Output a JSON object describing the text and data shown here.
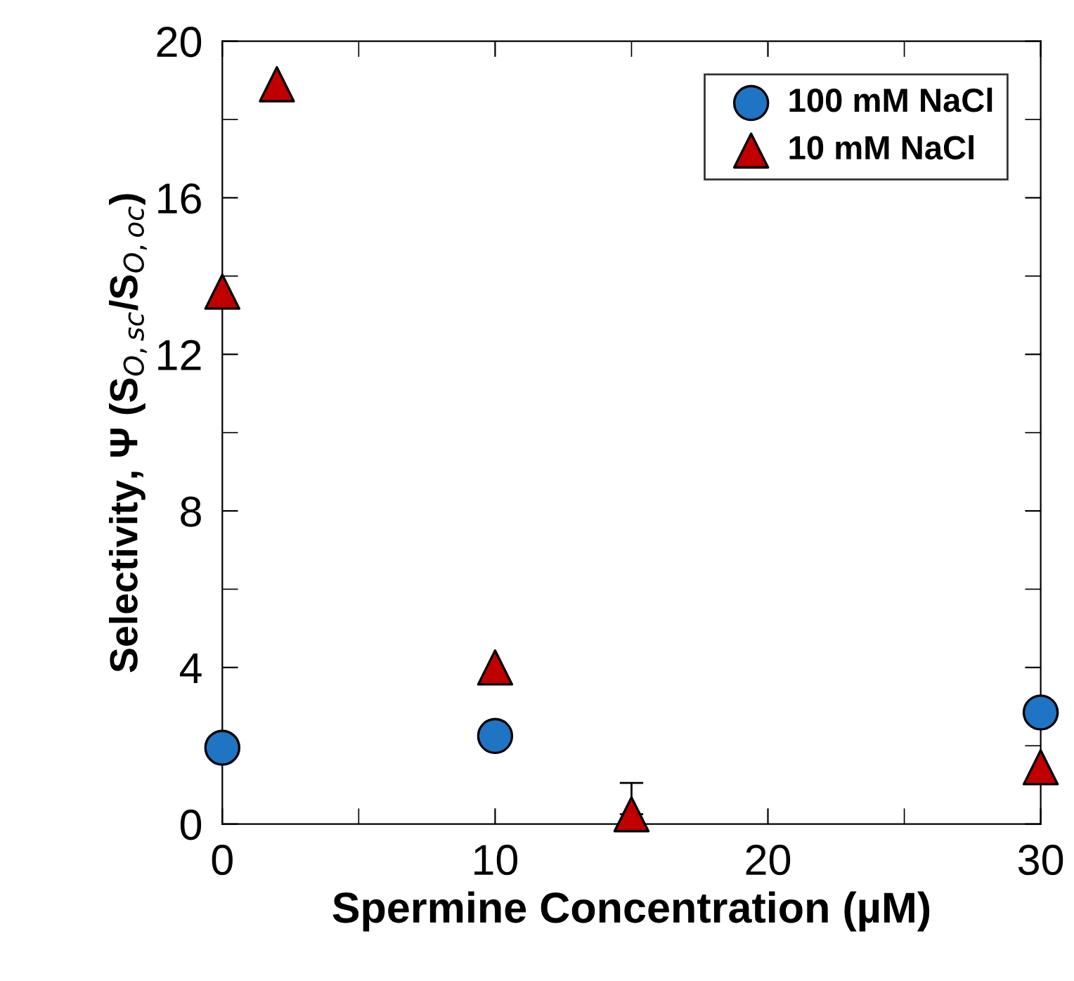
{
  "chart_data": {
    "type": "scatter",
    "xlabel": "Spermine Concentration (µM)",
    "ylabel": "Selectivity, Ψ (S$_{O,sc}$/S$_{O,oc}$)",
    "xlim": [
      0,
      30
    ],
    "xticks": [
      0,
      10,
      20,
      30
    ],
    "ylim": [
      0,
      20
    ],
    "yticks": [
      0,
      4,
      8,
      12,
      16,
      20
    ],
    "grid": false,
    "legend": "top right",
    "series": [
      {
        "name": "100 mM NaCl",
        "color": "#1f74c4",
        "marker": "circle",
        "x": [
          0,
          10,
          30
        ],
        "values": [
          1.95,
          2.25,
          2.85
        ]
      },
      {
        "name": "10 mM NaCl",
        "color": "#c00000",
        "marker": "triangle",
        "x": [
          0,
          2,
          10,
          15,
          30
        ],
        "values": [
          13.6,
          18.9,
          4.0,
          0.25,
          1.45
        ],
        "errors": [
          null,
          null,
          null,
          [
            0.25,
            1.05
          ],
          null
        ]
      }
    ]
  }
}
